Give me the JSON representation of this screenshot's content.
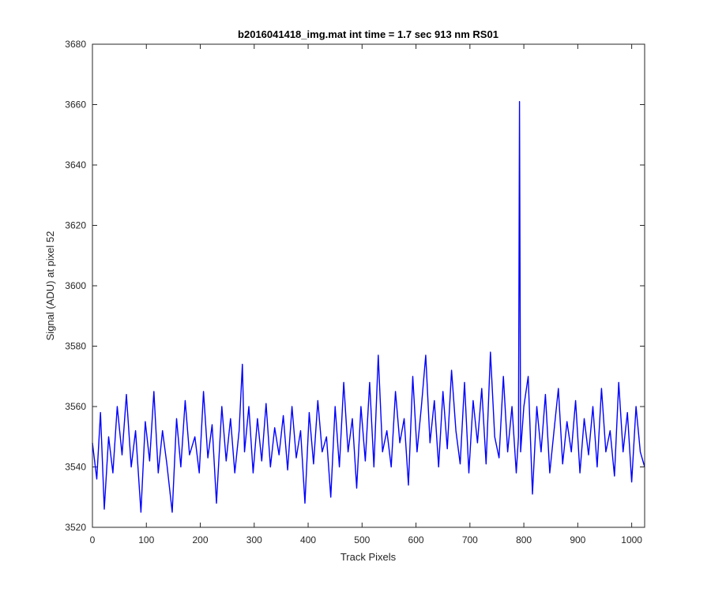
{
  "chart_data": {
    "type": "line",
    "title": "b2016041418_img.mat int time = 1.7 sec  913 nm RS01",
    "xlabel": "Track Pixels",
    "ylabel": "Signal (ADU) at pixel 52",
    "xlim": [
      0,
      1024
    ],
    "ylim": [
      3520,
      3680
    ],
    "xticks": [
      0,
      100,
      200,
      300,
      400,
      500,
      600,
      700,
      800,
      900,
      1000
    ],
    "yticks": [
      3520,
      3540,
      3560,
      3580,
      3600,
      3620,
      3640,
      3660,
      3680
    ],
    "grid": false,
    "series": [
      {
        "color": "#0000ff",
        "x": [
          0,
          8,
          15,
          22,
          30,
          38,
          46,
          55,
          63,
          72,
          80,
          90,
          98,
          106,
          114,
          122,
          130,
          138,
          148,
          156,
          164,
          172,
          180,
          190,
          198,
          206,
          214,
          222,
          230,
          240,
          248,
          256,
          264,
          272,
          278,
          282,
          290,
          298,
          306,
          314,
          322,
          330,
          338,
          346,
          354,
          362,
          370,
          378,
          386,
          394,
          402,
          410,
          418,
          426,
          434,
          442,
          450,
          458,
          466,
          474,
          482,
          490,
          498,
          506,
          514,
          522,
          530,
          538,
          546,
          554,
          562,
          570,
          578,
          586,
          594,
          602,
          610,
          618,
          626,
          634,
          642,
          650,
          658,
          666,
          674,
          682,
          690,
          698,
          706,
          714,
          722,
          730,
          738,
          746,
          754,
          762,
          770,
          778,
          786,
          790,
          792,
          794,
          800,
          808,
          816,
          824,
          832,
          840,
          848,
          856,
          864,
          872,
          880,
          888,
          896,
          904,
          912,
          920,
          928,
          936,
          944,
          952,
          960,
          968,
          976,
          984,
          992,
          1000,
          1008,
          1016,
          1024
        ],
        "y": [
          3548,
          3536,
          3558,
          3526,
          3550,
          3538,
          3560,
          3544,
          3564,
          3540,
          3552,
          3525,
          3555,
          3542,
          3565,
          3538,
          3552,
          3541,
          3525,
          3556,
          3540,
          3562,
          3544,
          3550,
          3538,
          3565,
          3543,
          3554,
          3528,
          3560,
          3542,
          3556,
          3538,
          3552,
          3574,
          3545,
          3560,
          3538,
          3556,
          3542,
          3561,
          3540,
          3553,
          3544,
          3557,
          3539,
          3560,
          3543,
          3552,
          3528,
          3558,
          3541,
          3562,
          3545,
          3550,
          3530,
          3560,
          3540,
          3568,
          3545,
          3556,
          3533,
          3560,
          3542,
          3568,
          3540,
          3577,
          3545,
          3552,
          3540,
          3565,
          3548,
          3556,
          3534,
          3570,
          3545,
          3560,
          3577,
          3548,
          3562,
          3540,
          3565,
          3546,
          3572,
          3552,
          3541,
          3568,
          3538,
          3562,
          3548,
          3566,
          3541,
          3578,
          3550,
          3543,
          3570,
          3545,
          3560,
          3538,
          3550,
          3661,
          3545,
          3560,
          3570,
          3531,
          3560,
          3545,
          3564,
          3538,
          3552,
          3566,
          3541,
          3555,
          3545,
          3562,
          3538,
          3556,
          3544,
          3560,
          3540,
          3566,
          3545,
          3552,
          3537,
          3568,
          3545,
          3558,
          3535,
          3560,
          3545,
          3540
        ]
      }
    ]
  }
}
